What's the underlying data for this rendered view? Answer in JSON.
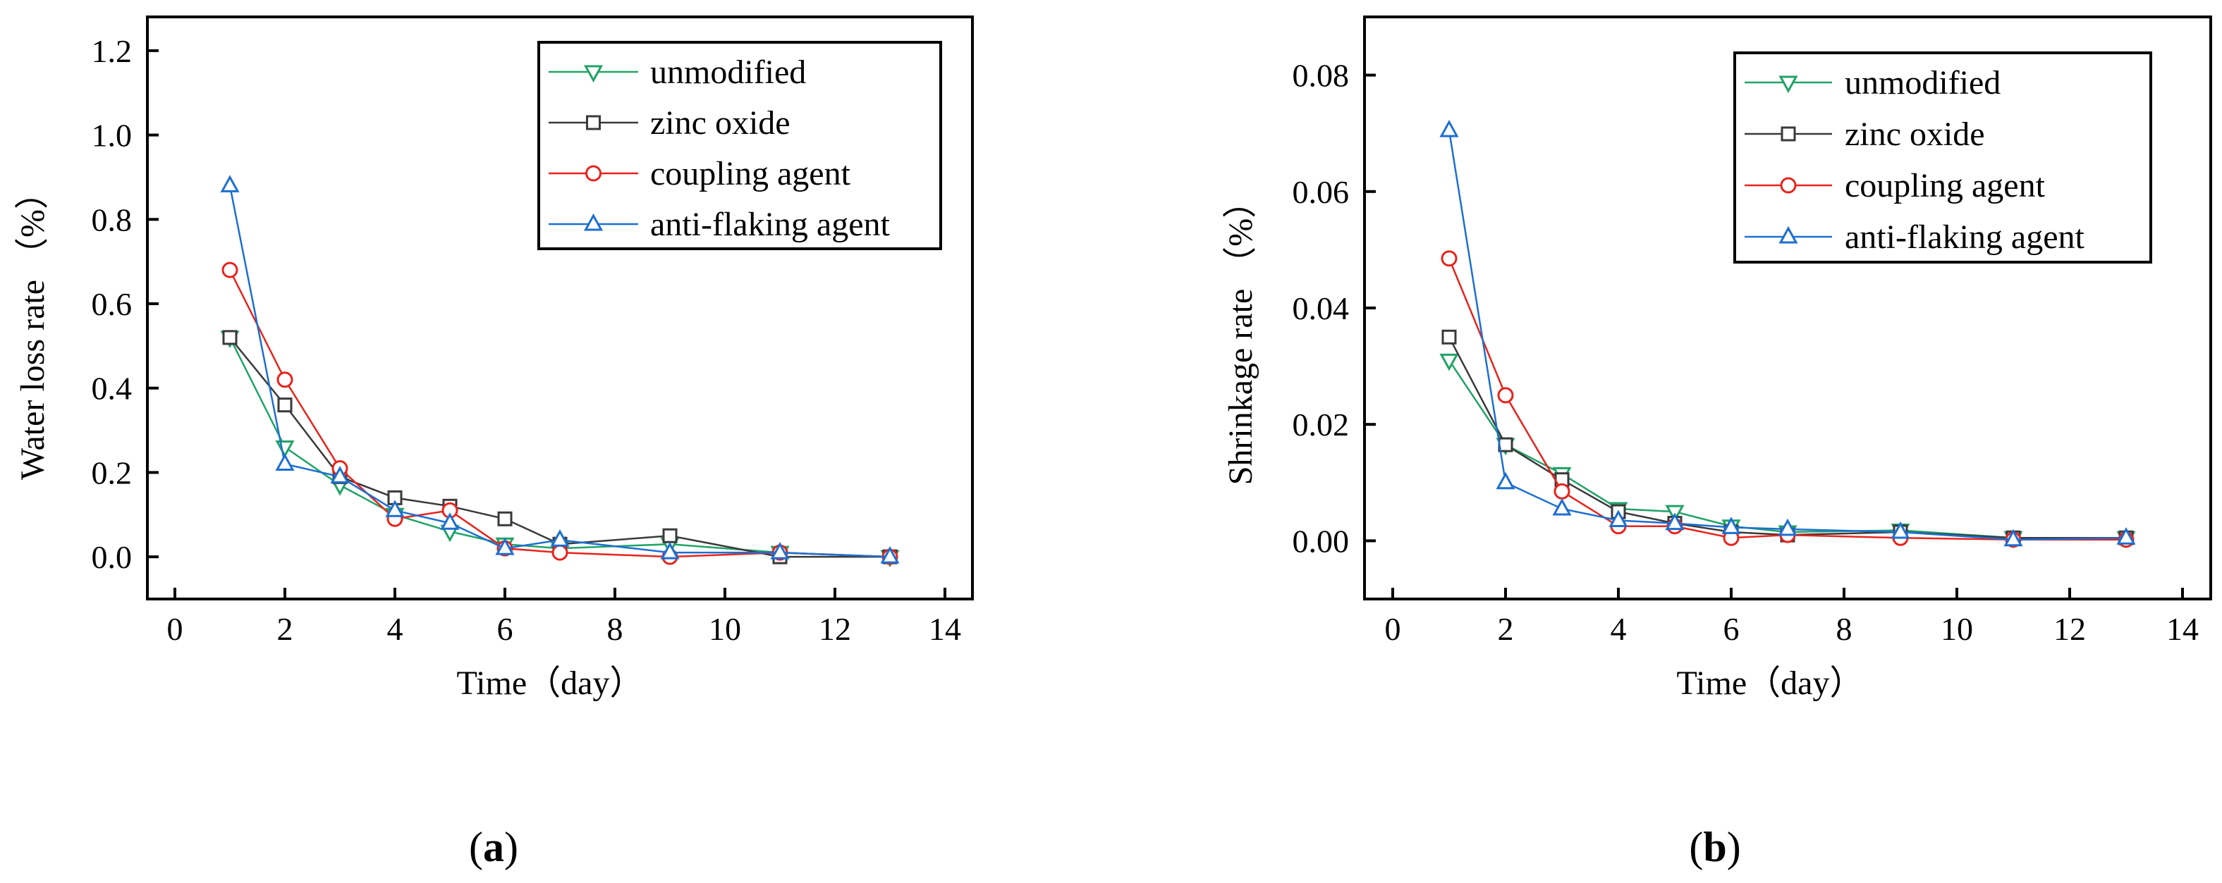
{
  "chart_data": [
    {
      "type": "line",
      "panel_label": "a",
      "xlabel": "Time（day）",
      "ylabel": "Water loss rate （%）",
      "xlim": [
        -0.5,
        14.5
      ],
      "ylim": [
        -0.1,
        1.28
      ],
      "xticks": [
        "0",
        "2",
        "4",
        "6",
        "8",
        "10",
        "12",
        "14"
      ],
      "yticks": [
        "0.0",
        "0.2",
        "0.4",
        "0.6",
        "0.8",
        "1.0",
        "1.2"
      ],
      "legend_position": "top-right",
      "series": [
        {
          "name": "unmodified",
          "color": "#21a366",
          "marker": "triangle-down",
          "x": [
            1,
            2,
            3,
            4,
            5,
            6,
            7,
            9,
            11,
            13
          ],
          "y": [
            0.52,
            0.26,
            0.17,
            0.1,
            0.06,
            0.03,
            0.02,
            0.03,
            0.01,
            0.0
          ]
        },
        {
          "name": "zinc oxide",
          "color": "#3a3a3a",
          "marker": "square",
          "x": [
            1,
            2,
            3,
            4,
            5,
            6,
            7,
            9,
            11,
            13
          ],
          "y": [
            0.52,
            0.36,
            0.19,
            0.14,
            0.12,
            0.09,
            0.03,
            0.05,
            0.0,
            0.0
          ]
        },
        {
          "name": "coupling agent",
          "color": "#e8231c",
          "marker": "circle",
          "x": [
            1,
            2,
            3,
            4,
            5,
            6,
            7,
            9,
            11,
            13
          ],
          "y": [
            0.68,
            0.42,
            0.21,
            0.09,
            0.11,
            0.02,
            0.01,
            0.0,
            0.01,
            0.0
          ]
        },
        {
          "name": "anti-flaking agent",
          "color": "#1d6fd1",
          "marker": "triangle-up",
          "x": [
            1,
            2,
            3,
            4,
            5,
            6,
            7,
            9,
            11,
            13
          ],
          "y": [
            0.88,
            0.22,
            0.19,
            0.11,
            0.08,
            0.02,
            0.04,
            0.01,
            0.01,
            0.0
          ]
        }
      ]
    },
    {
      "type": "line",
      "panel_label": "b",
      "xlabel": "Time（day）",
      "ylabel": "Shrinkage rate （%）",
      "xlim": [
        -0.5,
        14.5
      ],
      "ylim": [
        -0.01,
        0.09
      ],
      "xticks": [
        "0",
        "2",
        "4",
        "6",
        "8",
        "10",
        "12",
        "14"
      ],
      "yticks": [
        "0.00",
        "0.02",
        "0.04",
        "0.06",
        "0.08"
      ],
      "legend_position": "top-right",
      "series": [
        {
          "name": "unmodified",
          "color": "#21a366",
          "marker": "triangle-down",
          "x": [
            1,
            2,
            3,
            4,
            5,
            6,
            7,
            9,
            11,
            13
          ],
          "y": [
            0.031,
            0.0165,
            0.0115,
            0.0055,
            0.005,
            0.0025,
            0.0015,
            0.0018,
            0.0005,
            0.0005
          ]
        },
        {
          "name": "zinc oxide",
          "color": "#3a3a3a",
          "marker": "square",
          "x": [
            1,
            2,
            3,
            4,
            5,
            6,
            7,
            9,
            11,
            13
          ],
          "y": [
            0.035,
            0.0165,
            0.0105,
            0.005,
            0.003,
            0.0015,
            0.001,
            0.0015,
            0.0005,
            0.0005
          ]
        },
        {
          "name": "coupling agent",
          "color": "#e8231c",
          "marker": "circle",
          "x": [
            1,
            2,
            3,
            4,
            5,
            6,
            7,
            9,
            11,
            13
          ],
          "y": [
            0.0485,
            0.025,
            0.0085,
            0.0025,
            0.0025,
            0.0005,
            0.001,
            0.0005,
            0.0002,
            0.0002
          ]
        },
        {
          "name": "anti-flaking agent",
          "color": "#1d6fd1",
          "marker": "triangle-up",
          "x": [
            1,
            2,
            3,
            4,
            5,
            6,
            7,
            9,
            11,
            13
          ],
          "y": [
            0.0705,
            0.01,
            0.0055,
            0.0035,
            0.003,
            0.0023,
            0.002,
            0.0015,
            0.0002,
            0.0005
          ]
        }
      ]
    }
  ]
}
